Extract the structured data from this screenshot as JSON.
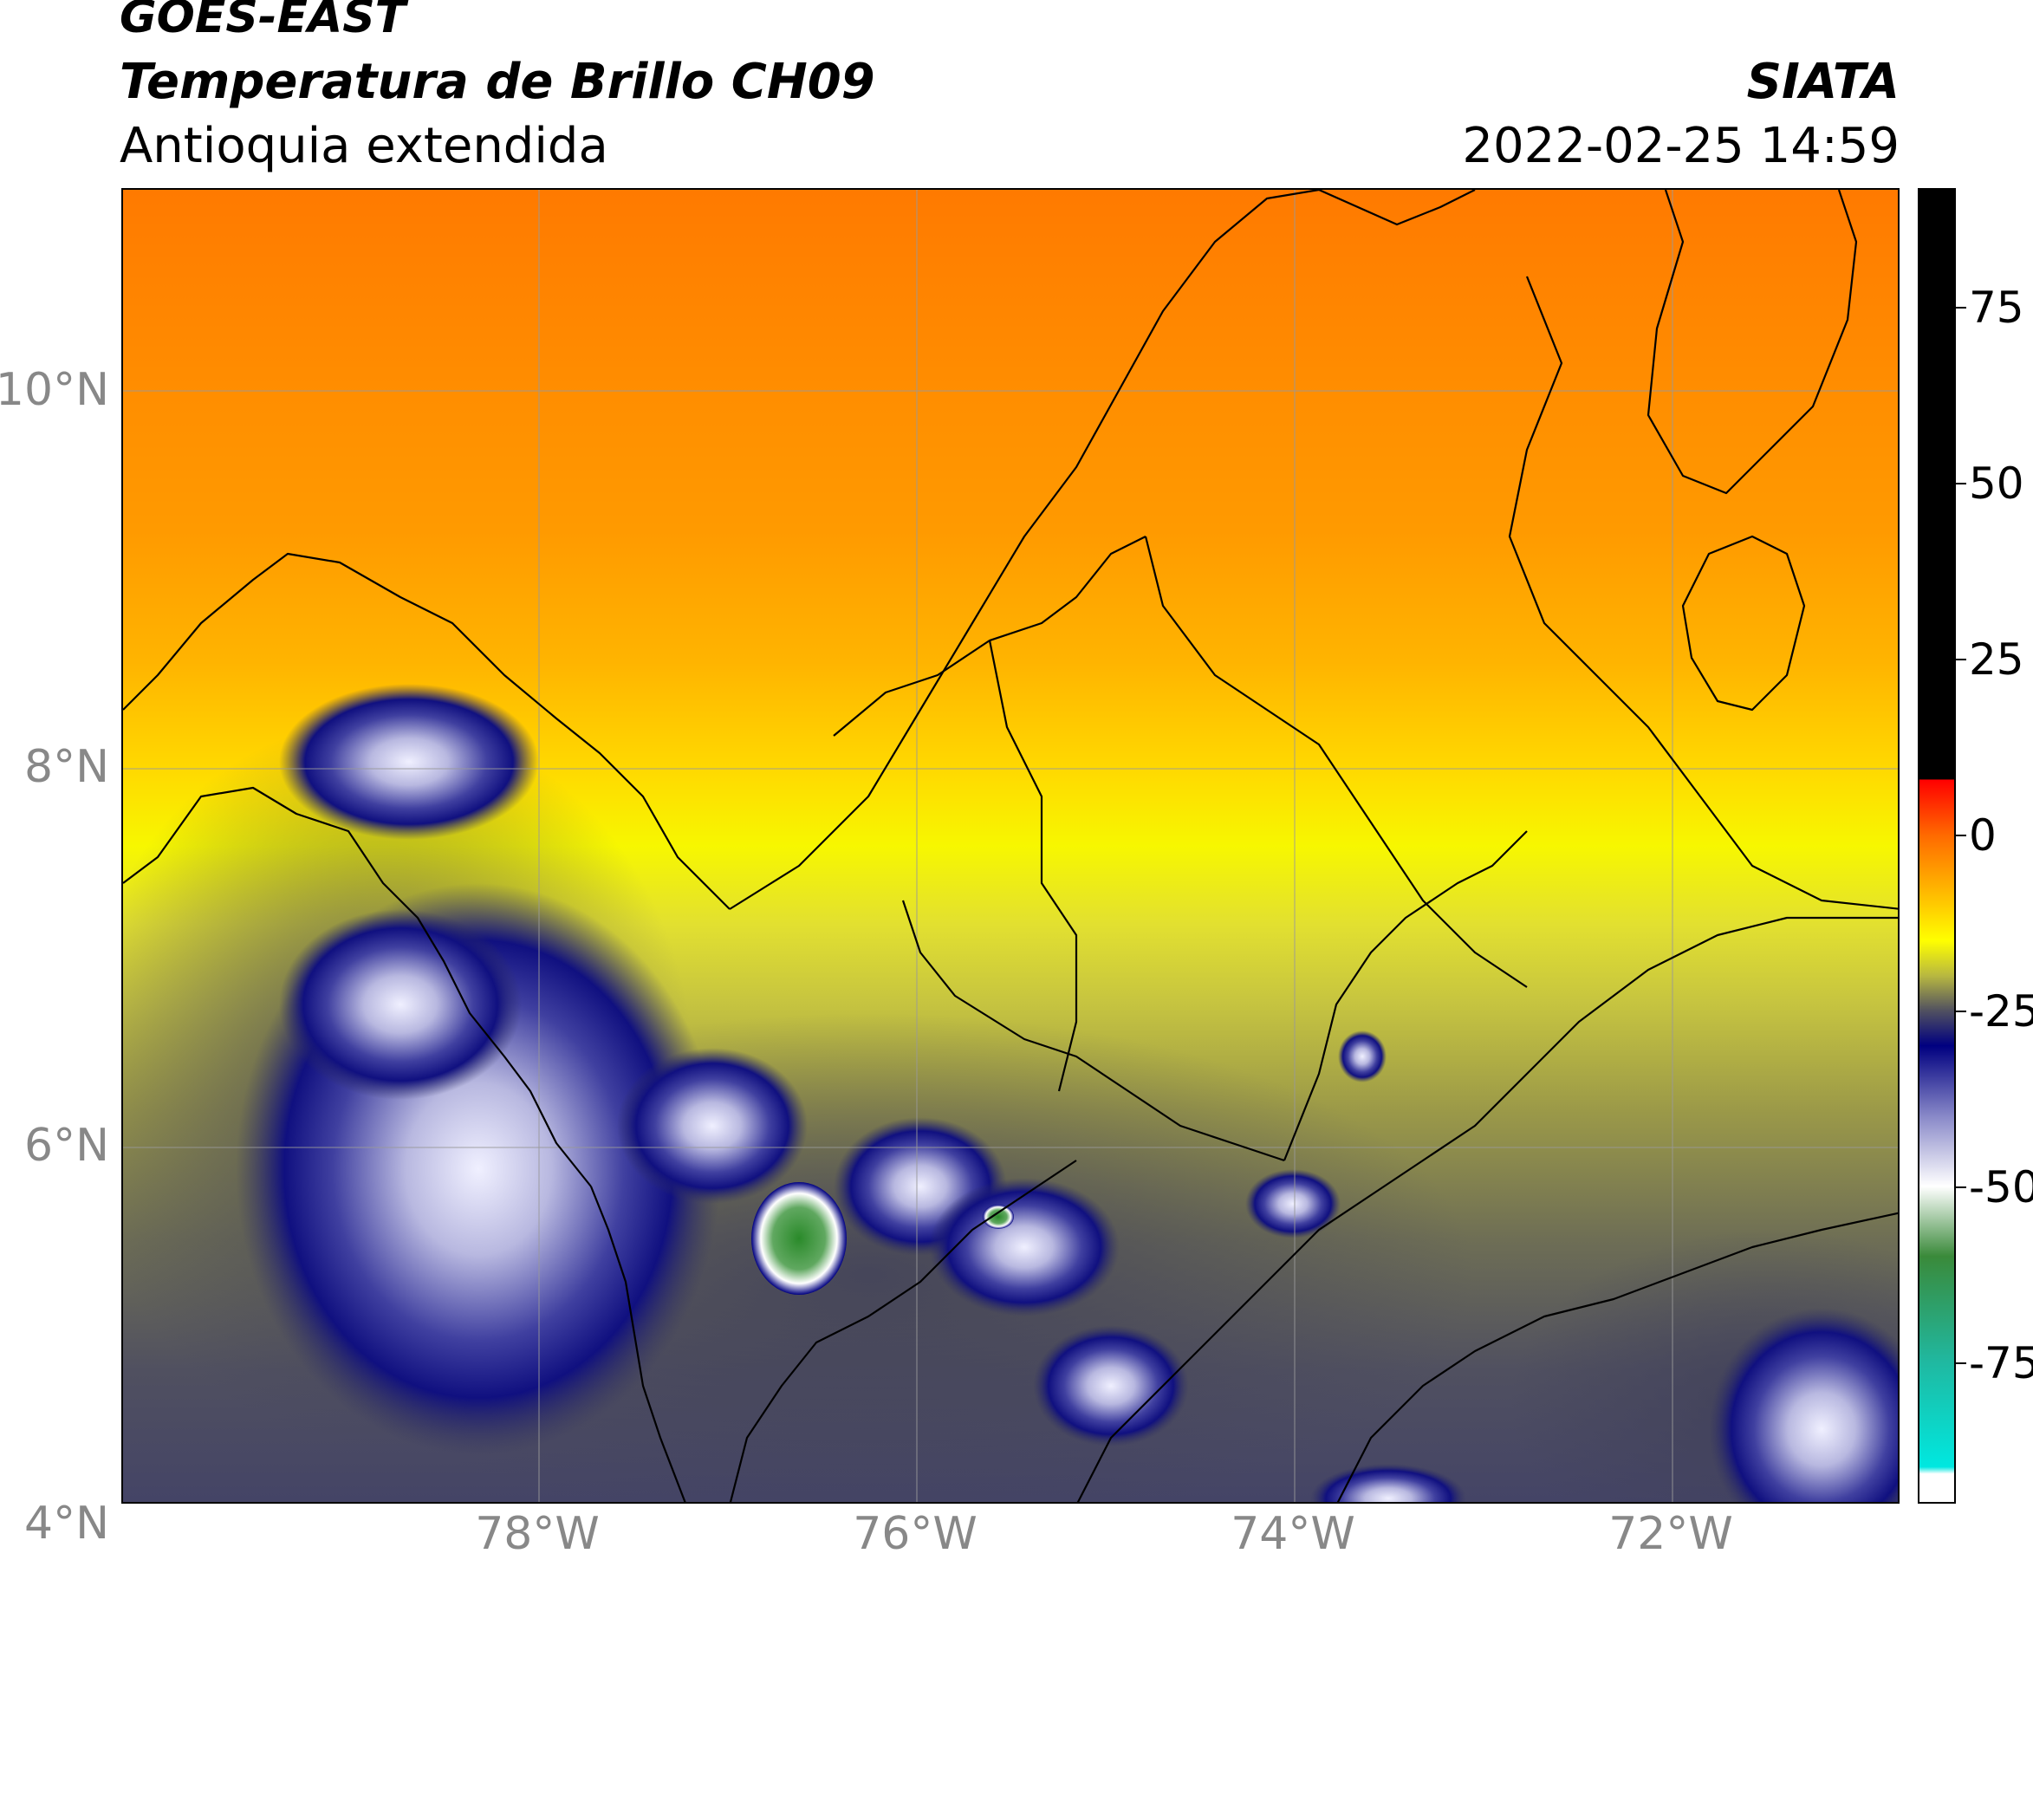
{
  "header": {
    "satellite": "GOES-EAST",
    "product": "Temperatura de Brillo CH09",
    "region": "Antioquia extendida",
    "organization": "SIATA",
    "datetime": "2022-02-25 14:59"
  },
  "map": {
    "lat_labels": [
      "10°N",
      "8°N",
      "6°N",
      "4°N"
    ],
    "lon_labels": [
      "78°W",
      "76°W",
      "74°W",
      "72°W"
    ],
    "extent": {
      "lon_min": -80.1,
      "lon_max": -70.7,
      "lat_min": 2.8,
      "lat_max": 11.1
    },
    "colors": {
      "border": "#000000",
      "grid": "#9a9a9a"
    }
  },
  "colorbar": {
    "labels": [
      "75",
      "50",
      "25",
      "0",
      "-25",
      "-50",
      "-75"
    ],
    "range": [
      -95,
      92
    ],
    "stops": [
      {
        "value": 92,
        "color": "#000000"
      },
      {
        "value": 8,
        "color": "#000000"
      },
      {
        "value": 7.9,
        "color": "#ff0000"
      },
      {
        "value": 0,
        "color": "#ff6a00"
      },
      {
        "value": -10,
        "color": "#ffcc00"
      },
      {
        "value": -15,
        "color": "#ffff00"
      },
      {
        "value": -20,
        "color": "#b8b840"
      },
      {
        "value": -25,
        "color": "#505060"
      },
      {
        "value": -30,
        "color": "#000080"
      },
      {
        "value": -40,
        "color": "#8888c8"
      },
      {
        "value": -50,
        "color": "#ffffff"
      },
      {
        "value": -60,
        "color": "#3a8a3a"
      },
      {
        "value": -75,
        "color": "#20b8a0"
      },
      {
        "value": -90,
        "color": "#00e8e0"
      },
      {
        "value": -91,
        "color": "#ffffff"
      },
      {
        "value": -95,
        "color": "#ffffff"
      }
    ]
  }
}
